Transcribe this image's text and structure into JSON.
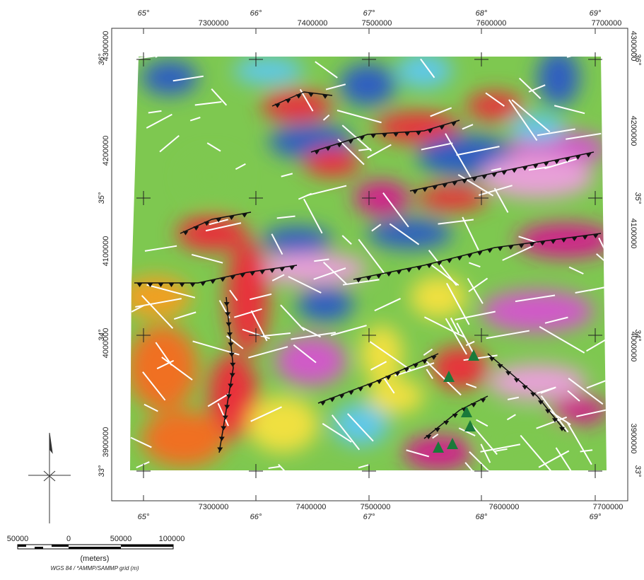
{
  "graticule": {
    "longitude_labels": [
      "65°",
      "66°",
      "67°",
      "68°",
      "69°"
    ],
    "latitude_labels": [
      "36°",
      "35°",
      "34°",
      "33°"
    ],
    "easting_labels": [
      "7300000",
      "7400000",
      "7500000",
      "7600000",
      "7700000"
    ],
    "northing_labels": [
      "4300000",
      "4200000",
      "4100000",
      "4000000",
      "3900000"
    ]
  },
  "scale_bar": {
    "labels": [
      "50000",
      "0",
      "50000",
      "100000"
    ],
    "unit": "(meters)",
    "projection": "WGS 84 / *AMMP/SAMMP grid (m)"
  }
}
